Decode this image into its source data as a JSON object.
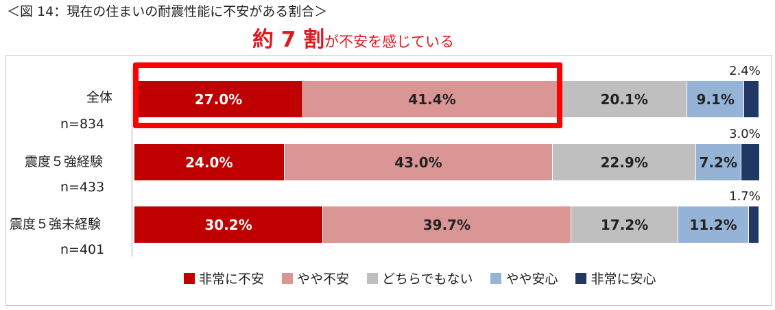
{
  "figure": {
    "title": "＜図 14：現在の住まいの耐震性能に不安がある割合＞",
    "headline_big": "約 7 割",
    "headline_small": "が不安を感じている"
  },
  "colors": {
    "very_anxious": "#c00000",
    "somewhat_anxious": "#d99694",
    "neither": "#bfbfbf",
    "somewhat_safe": "#95b3d7",
    "very_safe": "#1f3864",
    "highlight_box": "#ff0000",
    "headline": "#e0181c"
  },
  "chart_data": {
    "type": "bar",
    "orientation": "horizontal",
    "stacked": true,
    "normalized": true,
    "categories": [
      {
        "label": "全体",
        "n": "n=834"
      },
      {
        "label": "震度５強経験",
        "n": "n=433"
      },
      {
        "label": "震度５強未経験",
        "n": "n=401"
      }
    ],
    "series": [
      {
        "name": "非常に不安",
        "color": "#c00000",
        "text_color": "#ffffff",
        "values": [
          27.0,
          24.0,
          30.2
        ],
        "labels": [
          "27.0%",
          "24.0%",
          "30.2%"
        ],
        "label_position": "inside"
      },
      {
        "name": "やや不安",
        "color": "#d99694",
        "text_color": "#222222",
        "values": [
          41.4,
          43.0,
          39.7
        ],
        "labels": [
          "41.4%",
          "43.0%",
          "39.7%"
        ],
        "label_position": "inside"
      },
      {
        "name": "どちらでもない",
        "color": "#bfbfbf",
        "text_color": "#222222",
        "values": [
          20.1,
          22.9,
          17.2
        ],
        "labels": [
          "20.1%",
          "22.9%",
          "17.2%"
        ],
        "label_position": "inside"
      },
      {
        "name": "やや安心",
        "color": "#95b3d7",
        "text_color": "#222222",
        "values": [
          9.1,
          7.2,
          11.2
        ],
        "labels": [
          "9.1%",
          "7.2%",
          "11.2%"
        ],
        "label_position": "inside"
      },
      {
        "name": "非常に安心",
        "color": "#1f3864",
        "text_color": "#222222",
        "values": [
          2.4,
          3.0,
          1.7
        ],
        "labels": [
          "2.4%",
          "3.0%",
          "1.7%"
        ],
        "label_position": "outside-above"
      }
    ],
    "xlim": [
      0,
      100
    ],
    "legend_position": "bottom",
    "highlight": {
      "category_index": 0,
      "series_indices": [
        0,
        1
      ]
    }
  }
}
